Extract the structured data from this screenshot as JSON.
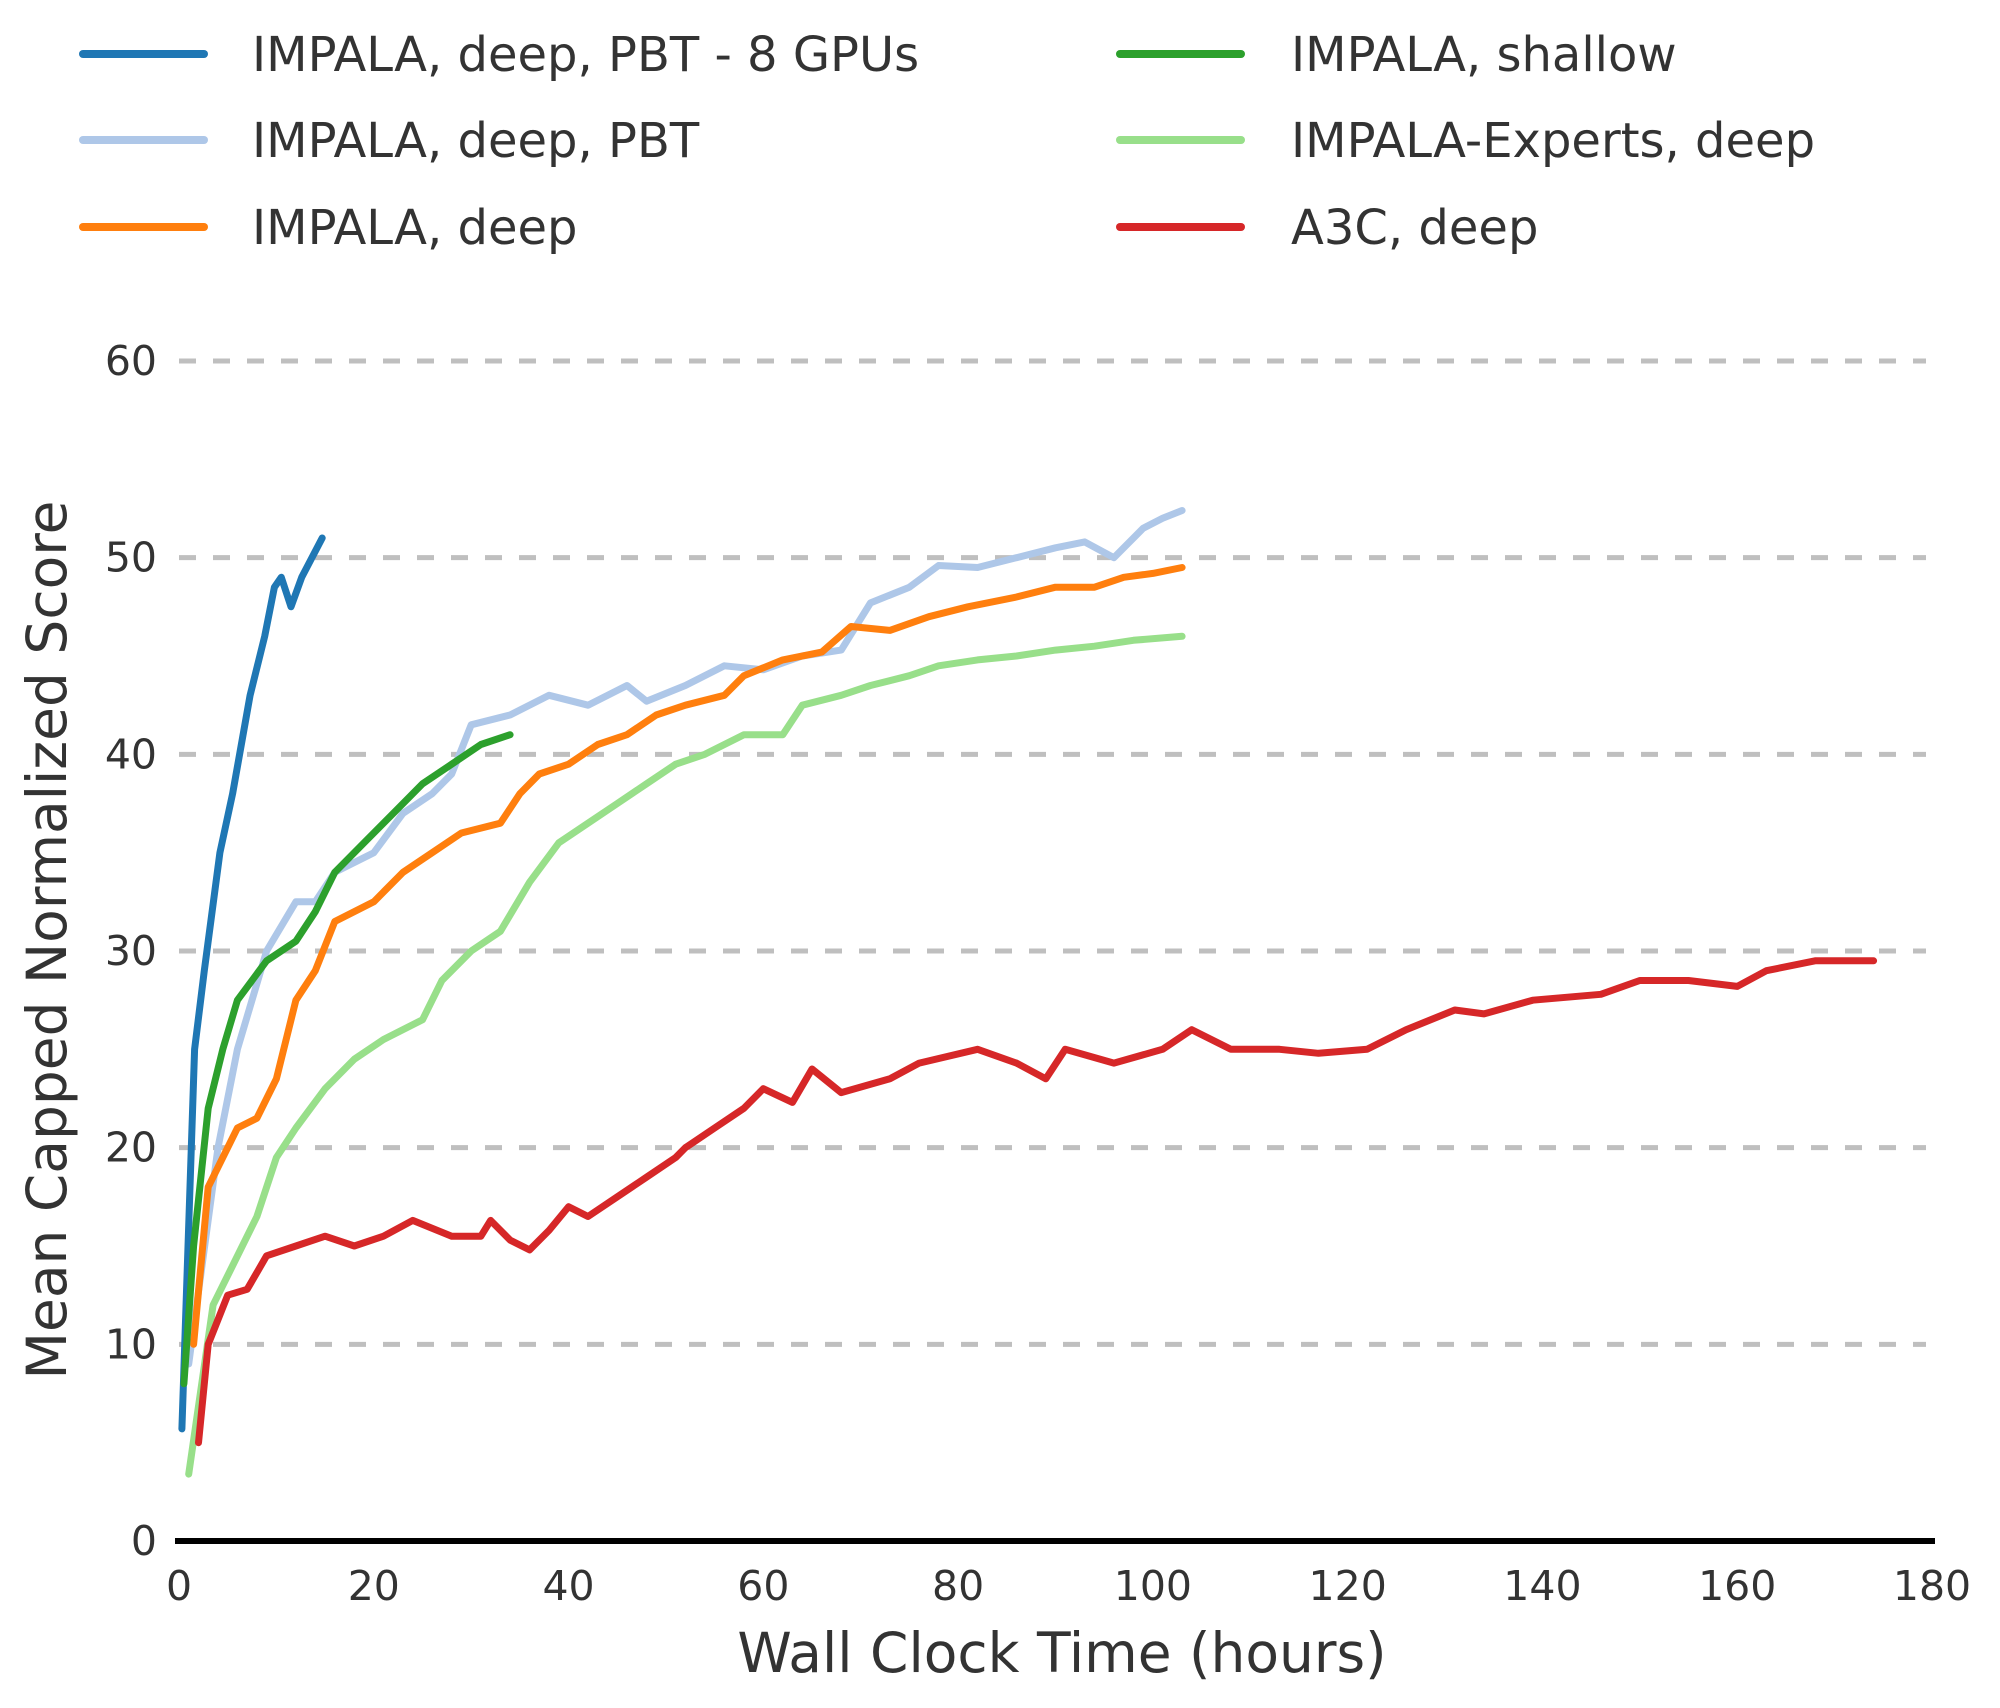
{
  "chart_data": {
    "type": "line",
    "title": "",
    "xlabel": "Wall Clock Time (hours)",
    "ylabel": "Mean Capped Normalized Score",
    "xlim": [
      0,
      180
    ],
    "ylim": [
      0,
      60
    ],
    "xticks": [
      0,
      20,
      40,
      60,
      80,
      100,
      120,
      140,
      160,
      180
    ],
    "yticks": [
      0,
      10,
      20,
      30,
      40,
      50,
      60
    ],
    "grid": "horizontal dashed",
    "legend_position": "top",
    "series": [
      {
        "name": "IMPALA, deep, PBT - 8 GPUs",
        "color": "#1f77b4",
        "x": [
          0.3,
          1.6,
          2.6,
          4.2,
          5.5,
          7.3,
          8.8,
          9.8,
          10.5,
          11.5,
          12.6,
          14.7
        ],
        "y": [
          5.7,
          25,
          29,
          35,
          38,
          43,
          46,
          48.5,
          49,
          47.5,
          49,
          51
        ]
      },
      {
        "name": "IMPALA, deep, PBT",
        "color": "#aec7e8",
        "x": [
          1,
          4,
          6,
          9,
          12,
          14,
          16,
          20,
          23,
          26,
          28,
          30,
          34,
          38,
          42,
          46,
          48,
          52,
          56,
          60,
          64,
          68,
          71,
          75,
          78,
          82,
          86,
          90,
          93,
          96,
          99,
          101,
          103
        ],
        "y": [
          9,
          20,
          25,
          30,
          32.5,
          32.5,
          34,
          35,
          37,
          38,
          39,
          41.5,
          42,
          43,
          42.5,
          43.5,
          42.7,
          43.5,
          44.5,
          44.3,
          45,
          45.3,
          47.7,
          48.5,
          49.6,
          49.5,
          50,
          50.5,
          50.8,
          50,
          51.5,
          52,
          52.4
        ]
      },
      {
        "name": "IMPALA, deep",
        "color": "#ff7f0e",
        "x": [
          1.5,
          3,
          6,
          8,
          10,
          12,
          14,
          16,
          20,
          23,
          26,
          29,
          33,
          35,
          37,
          40,
          43,
          46,
          49,
          52,
          56,
          58,
          62,
          66,
          69,
          73,
          77,
          81,
          86,
          90,
          94,
          97,
          100,
          103
        ],
        "y": [
          10,
          18,
          21,
          21.5,
          23.5,
          27.5,
          29,
          31.5,
          32.5,
          34,
          35,
          36,
          36.5,
          38,
          39,
          39.5,
          40.5,
          41,
          42,
          42.5,
          43,
          44,
          44.8,
          45.2,
          46.5,
          46.3,
          47,
          47.5,
          48,
          48.5,
          48.5,
          49,
          49.2,
          49.5
        ]
      },
      {
        "name": "IMPALA, shallow",
        "color": "#2ca02c",
        "x": [
          0.5,
          1.5,
          3,
          4.5,
          6,
          9,
          12,
          14,
          16,
          19,
          22,
          25,
          28,
          31,
          34
        ],
        "y": [
          8,
          15,
          22,
          25,
          27.5,
          29.5,
          30.5,
          32,
          34,
          35.5,
          37,
          38.5,
          39.5,
          40.5,
          41
        ]
      },
      {
        "name": "IMPALA-Experts, deep",
        "color": "#98df8a",
        "x": [
          1,
          3.5,
          5.5,
          8,
          10,
          12,
          15,
          18,
          21,
          25,
          27,
          30,
          33,
          36,
          39,
          42,
          45,
          48,
          51,
          54,
          58,
          62,
          64,
          68,
          71,
          75,
          78,
          82,
          86,
          90,
          94,
          98,
          103
        ],
        "y": [
          3.4,
          12,
          14,
          16.5,
          19.5,
          21,
          23,
          24.5,
          25.5,
          26.5,
          28.5,
          30,
          31,
          33.5,
          35.5,
          36.5,
          37.5,
          38.5,
          39.5,
          40,
          41,
          41,
          42.5,
          43,
          43.5,
          44,
          44.5,
          44.8,
          45,
          45.3,
          45.5,
          45.8,
          46
        ]
      },
      {
        "name": "A3C, deep",
        "color": "#d62728",
        "x": [
          2,
          3,
          5,
          7,
          9,
          12,
          15,
          18,
          21,
          24,
          28,
          31,
          32,
          34,
          36,
          38,
          40,
          42,
          45,
          48,
          51,
          52,
          55,
          58,
          60,
          63,
          65,
          68,
          73,
          76,
          82,
          86,
          89,
          91,
          96,
          101,
          104,
          108,
          113,
          117,
          122,
          126,
          131,
          134,
          139,
          146,
          150,
          155,
          160,
          163,
          168,
          174
        ],
        "y": [
          5,
          10,
          12.5,
          12.8,
          14.5,
          15,
          15.5,
          15,
          15.5,
          16.3,
          15.5,
          15.5,
          16.3,
          15.3,
          14.8,
          15.8,
          17,
          16.5,
          17.5,
          18.5,
          19.5,
          20,
          21,
          22,
          23,
          22.3,
          24,
          22.8,
          23.5,
          24.3,
          25,
          24.3,
          23.5,
          25,
          24.3,
          25,
          26,
          25,
          25,
          24.8,
          25,
          26,
          27,
          26.8,
          27.5,
          27.8,
          28.5,
          28.5,
          28.2,
          29,
          29.5,
          29.5
        ]
      }
    ]
  }
}
